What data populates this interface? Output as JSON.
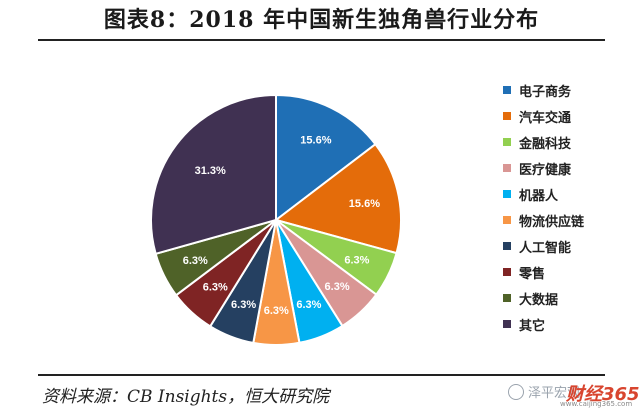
{
  "header": {
    "title": "图表8：2018 年中国新生独角兽行业分布"
  },
  "chart_data": {
    "type": "pie",
    "title": "图表8：2018 年中国新生独角兽行业分布",
    "start_angle_deg": 0,
    "direction": "clockwise",
    "legend_position": "right",
    "slices": [
      {
        "label": "电子商务",
        "value": 15.6,
        "display": "15.6%",
        "color": "#1f6fb5"
      },
      {
        "label": "汽车交通",
        "value": 15.6,
        "display": "15.6%",
        "color": "#e46c0a"
      },
      {
        "label": "金融科技",
        "value": 6.3,
        "display": "6.3%",
        "color": "#92d050"
      },
      {
        "label": "医疗健康",
        "value": 6.3,
        "display": "6.3%",
        "color": "#d99694"
      },
      {
        "label": "机器人",
        "value": 6.3,
        "display": "6.3%",
        "color": "#00b0f0"
      },
      {
        "label": "物流供应链",
        "value": 6.3,
        "display": "6.3%",
        "color": "#f79646"
      },
      {
        "label": "人工智能",
        "value": 6.3,
        "display": "6.3%",
        "color": "#254061"
      },
      {
        "label": "零售",
        "value": 6.3,
        "display": "6.3%",
        "color": "#7f2424"
      },
      {
        "label": "大数据",
        "value": 6.3,
        "display": "6.3%",
        "color": "#4f6228"
      },
      {
        "label": "其它",
        "value": 31.3,
        "display": "31.3%",
        "color": "#403152"
      }
    ]
  },
  "footer": {
    "source": "资料来源：CB Insights，恒大研究院",
    "watermark": "泽平宏观",
    "brand": "财经365",
    "brand_url": "www.caijing365.com"
  }
}
